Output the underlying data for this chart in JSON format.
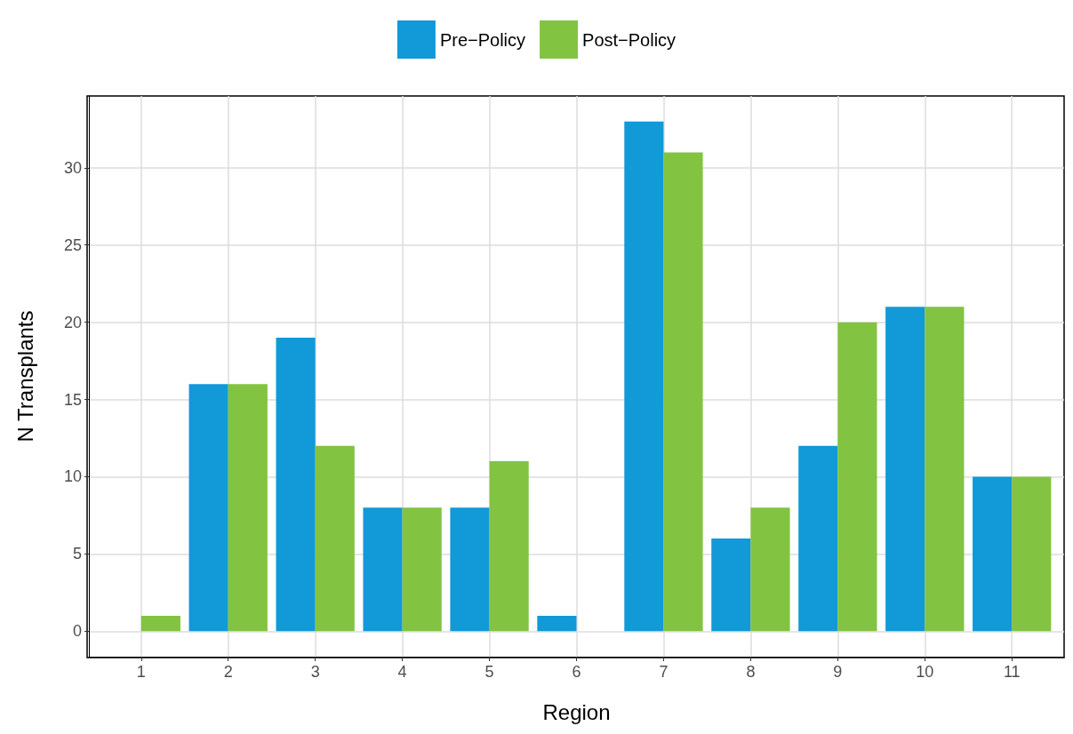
{
  "chart_data": {
    "type": "bar",
    "xlabel": "Region",
    "ylabel": "N Transplants",
    "categories": [
      "1",
      "2",
      "3",
      "4",
      "5",
      "6",
      "7",
      "8",
      "9",
      "10",
      "11"
    ],
    "series": [
      {
        "name": "Pre−Policy",
        "color": "#1199d8",
        "values": [
          0,
          16,
          19,
          8,
          8,
          1,
          33,
          6,
          12,
          21,
          10
        ]
      },
      {
        "name": "Post−Policy",
        "color": "#82c341",
        "values": [
          1,
          16,
          12,
          8,
          11,
          0,
          31,
          8,
          20,
          21,
          10
        ]
      }
    ],
    "ylim": [
      -1.65,
      34.65
    ],
    "yticks": [
      0,
      5,
      10,
      15,
      20,
      25,
      30
    ],
    "grid": true,
    "legend": "top"
  }
}
